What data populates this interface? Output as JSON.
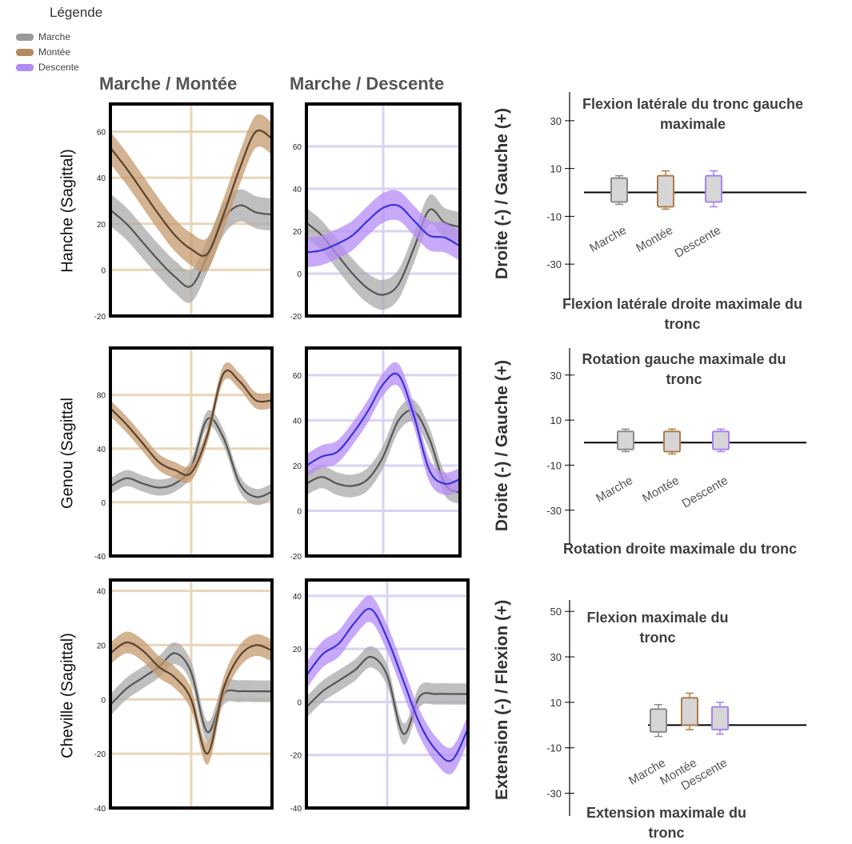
{
  "legend": {
    "title": "Légende",
    "items": [
      {
        "label": "Marche",
        "color": "#9a9a9a"
      },
      {
        "label": "Montée",
        "color": "#b58a5c"
      },
      {
        "label": "Descente",
        "color": "#b18cf5"
      }
    ]
  },
  "colors": {
    "marche_line": "#555555",
    "marche_band": "#a9a9a9",
    "montee_line": "#5b4330",
    "montee_band": "#c49a6c",
    "descente_line": "#3a34d8",
    "descente_band": "#b58cf7"
  },
  "columns": [
    "Marche / Montée",
    "Marche / Descente"
  ],
  "rows": [
    "Hanche (Sagittal)",
    "Genou (Sagittal",
    "Cheville (Sagittal)"
  ],
  "chart_data": [
    {
      "type": "line",
      "panel": "hanche-montee",
      "ylim": [
        -20,
        72
      ],
      "yticks": [
        "60",
        "40",
        "20",
        "0",
        "-20"
      ],
      "x": [
        0,
        10,
        20,
        30,
        40,
        50,
        60,
        70,
        80,
        90,
        100
      ],
      "series": [
        {
          "name": "Marche",
          "values": [
            26,
            20,
            12,
            4,
            -3,
            -7,
            6,
            22,
            28,
            25,
            24
          ],
          "sd": 7
        },
        {
          "name": "Montée",
          "values": [
            53,
            44,
            34,
            24,
            15,
            9,
            7,
            24,
            44,
            60,
            57
          ],
          "sd": 7
        }
      ]
    },
    {
      "type": "line",
      "panel": "hanche-descente",
      "ylim": [
        -20,
        80
      ],
      "yticks": [
        "60",
        "40",
        "20",
        "0",
        "-20"
      ],
      "x": [
        0,
        10,
        20,
        30,
        40,
        50,
        60,
        70,
        80,
        90,
        100
      ],
      "series": [
        {
          "name": "Marche",
          "values": [
            24,
            18,
            9,
            0,
            -7,
            -10,
            -5,
            12,
            30,
            24,
            22
          ],
          "sd": 7
        },
        {
          "name": "Descente",
          "values": [
            10,
            11,
            14,
            18,
            25,
            31,
            32,
            25,
            18,
            17,
            13
          ],
          "sd": 7
        }
      ]
    },
    {
      "type": "line",
      "panel": "genou-montee",
      "ylim": [
        -40,
        115
      ],
      "yticks": [
        "80",
        "40",
        "0",
        "-40"
      ],
      "x": [
        0,
        10,
        20,
        30,
        40,
        50,
        60,
        70,
        80,
        90,
        100
      ],
      "series": [
        {
          "name": "Marche",
          "values": [
            12,
            18,
            14,
            11,
            14,
            26,
            62,
            48,
            14,
            4,
            8
          ],
          "sd": 6
        },
        {
          "name": "Montée",
          "values": [
            70,
            58,
            44,
            30,
            24,
            22,
            50,
            96,
            90,
            76,
            76
          ],
          "sd": 6
        }
      ]
    },
    {
      "type": "line",
      "panel": "genou-descente",
      "ylim": [
        -20,
        72
      ],
      "yticks": [
        "60",
        "40",
        "20",
        "0",
        "-20"
      ],
      "x": [
        0,
        10,
        20,
        30,
        40,
        50,
        60,
        70,
        80,
        90,
        100
      ],
      "series": [
        {
          "name": "Marche",
          "values": [
            12,
            15,
            12,
            11,
            14,
            24,
            40,
            44,
            32,
            12,
            8
          ],
          "sd": 5
        },
        {
          "name": "Descente",
          "values": [
            20,
            24,
            26,
            34,
            44,
            56,
            60,
            42,
            18,
            12,
            14
          ],
          "sd": 5
        }
      ]
    },
    {
      "type": "line",
      "panel": "cheville-montee",
      "ylim": [
        -40,
        44
      ],
      "yticks": [
        "40",
        "20",
        "0",
        "-20",
        "-40"
      ],
      "x": [
        0,
        10,
        20,
        30,
        40,
        50,
        60,
        70,
        80,
        90,
        100
      ],
      "series": [
        {
          "name": "Marche",
          "values": [
            -2,
            4,
            8,
            12,
            17,
            10,
            -12,
            2,
            3,
            3,
            3
          ],
          "sd": 4
        },
        {
          "name": "Montée",
          "values": [
            17,
            21,
            18,
            12,
            8,
            0,
            -20,
            4,
            16,
            20,
            18
          ],
          "sd": 4
        }
      ]
    },
    {
      "type": "line",
      "panel": "cheville-descente",
      "ylim": [
        -40,
        46
      ],
      "yticks": [
        "40",
        "20",
        "0",
        "-20",
        "-40"
      ],
      "x": [
        0,
        10,
        20,
        30,
        40,
        50,
        60,
        70,
        80,
        90,
        100
      ],
      "series": [
        {
          "name": "Marche",
          "values": [
            -2,
            4,
            8,
            12,
            17,
            10,
            -12,
            2,
            3,
            3,
            3
          ],
          "sd": 4
        },
        {
          "name": "Descente",
          "values": [
            10,
            18,
            22,
            30,
            35,
            24,
            8,
            -8,
            -18,
            -22,
            -10
          ],
          "sd": 5
        }
      ]
    },
    {
      "type": "box",
      "panel": "flexion-laterale",
      "ylim": [
        -45,
        42
      ],
      "yticks": [
        "30",
        "10",
        "-10",
        "-30"
      ],
      "categories": [
        "Marche",
        "Montée",
        "Descente"
      ],
      "boxes": [
        {
          "name": "Marche",
          "whisker_low": -5,
          "q1": -4,
          "q3": 6,
          "whisker_high": 7
        },
        {
          "name": "Montée",
          "whisker_low": -7,
          "q1": -6,
          "q3": 7,
          "whisker_high": 9
        },
        {
          "name": "Descente",
          "whisker_low": -6,
          "q1": -4,
          "q3": 7,
          "whisker_high": 9
        }
      ],
      "ylabel": "Droite (-) / Gauche (+)",
      "top_note": "Flexion latérale du tronc gauche maximale",
      "bottom_note": "Flexion latérale droite maximale du tronc"
    },
    {
      "type": "box",
      "panel": "rotation",
      "ylim": [
        -45,
        42
      ],
      "yticks": [
        "30",
        "10",
        "-10",
        "-30"
      ],
      "categories": [
        "Marche",
        "Montée",
        "Descente"
      ],
      "boxes": [
        {
          "name": "Marche",
          "whisker_low": -4,
          "q1": -3,
          "q3": 5,
          "whisker_high": 6
        },
        {
          "name": "Montée",
          "whisker_low": -5,
          "q1": -4,
          "q3": 5,
          "whisker_high": 6
        },
        {
          "name": "Descente",
          "whisker_low": -4,
          "q1": -3,
          "q3": 5,
          "whisker_high": 6
        }
      ],
      "ylabel": "Droite (-) / Gauche (+)",
      "top_note": "Rotation gauche maximale du tronc",
      "bottom_note": "Rotation droite maximale du tronc"
    },
    {
      "type": "box",
      "panel": "flexion",
      "ylim": [
        -40,
        55
      ],
      "yticks": [
        "50",
        "30",
        "10",
        "-10",
        "-30"
      ],
      "categories": [
        "Marche",
        "Montée",
        "Descente"
      ],
      "boxes": [
        {
          "name": "Marche",
          "whisker_low": -5,
          "q1": -3,
          "q3": 7,
          "whisker_high": 9
        },
        {
          "name": "Montée",
          "whisker_low": -2,
          "q1": 0,
          "q3": 12,
          "whisker_high": 14
        },
        {
          "name": "Descente",
          "whisker_low": -4,
          "q1": -2,
          "q3": 8,
          "whisker_high": 10
        }
      ],
      "ylabel": "Extension (-) / Flexion (+)",
      "top_note": "Flexion maximale du tronc",
      "bottom_note": "Extension maximale du tronc"
    }
  ]
}
